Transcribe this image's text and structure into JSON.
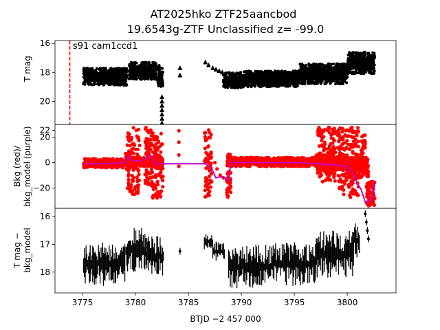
{
  "figure": {
    "title_line1": "AT2025hko  ZTF25aancbod",
    "title_line2": "19.6543g-ZTF Unclassified z= -99.0",
    "xlabel": "BTJD −2 457 000"
  },
  "colors": {
    "black": "#000000",
    "red": "#ff0000",
    "purple": "#bf00bf",
    "marker_line": "#ff0000"
  },
  "chart_data": [
    {
      "type": "scatter",
      "name": "T mag panel",
      "ylabel": "T mag",
      "ylim": [
        21.6,
        15.8
      ],
      "y_inverted": true,
      "xlim": [
        3772.4,
        3804.6
      ],
      "yticks": [
        16,
        18,
        20,
        22
      ],
      "annotation": "s91 cam1ccd1",
      "vline_x": 3773.8,
      "bands": [
        {
          "x0": 3775.1,
          "x1": 3779.2,
          "ymin": 17.7,
          "ymax": 18.9
        },
        {
          "x0": 3779.4,
          "x1": 3782.0,
          "ymin": 17.3,
          "ymax": 18.5
        },
        {
          "x0": 3782.1,
          "x1": 3782.6,
          "ymin": 17.5,
          "ymax": 19.0
        },
        {
          "x0": 3788.3,
          "x1": 3790.2,
          "ymin": 18.0,
          "ymax": 19.1
        },
        {
          "x0": 3790.2,
          "x1": 3795.5,
          "ymin": 17.9,
          "ymax": 19.0
        },
        {
          "x0": 3795.5,
          "x1": 3800.0,
          "ymin": 17.4,
          "ymax": 18.8
        },
        {
          "x0": 3800.0,
          "x1": 3802.6,
          "ymin": 16.6,
          "ymax": 18.1
        }
      ],
      "points": [
        [
          3782.5,
          19.7
        ],
        [
          3782.5,
          20.0
        ],
        [
          3782.5,
          20.3
        ],
        [
          3782.5,
          20.6
        ],
        [
          3782.5,
          20.9
        ],
        [
          3782.5,
          21.2
        ],
        [
          3782.5,
          21.5
        ],
        [
          3784.2,
          17.7
        ],
        [
          3784.2,
          18.2
        ],
        [
          3786.6,
          17.3
        ],
        [
          3786.9,
          17.5
        ],
        [
          3787.3,
          17.7
        ],
        [
          3787.6,
          17.8
        ],
        [
          3787.9,
          17.9
        ],
        [
          3788.2,
          18.0
        ]
      ]
    },
    {
      "type": "scatter",
      "name": "background panel",
      "ylabel_line1": "Bkg (red)/",
      "ylabel_line2": "bkg_model (purple)",
      "ylim": [
        -36,
        30
      ],
      "xlim": [
        3772.4,
        3804.6
      ],
      "yticks": [
        20,
        0,
        -20
      ],
      "bkg_core": [
        [
          3775.1,
          3779.0,
          -4,
          3
        ],
        [
          3779.0,
          3779.5,
          -6,
          8
        ],
        [
          3779.5,
          3782.6,
          -3,
          4
        ],
        [
          3788.8,
          3797.0,
          -3,
          4
        ],
        [
          3797.0,
          3800.0,
          -6,
          6
        ],
        [
          3800.0,
          3802.0,
          -12,
          4
        ]
      ],
      "bkg_spread": [
        [
          3779.2,
          3780.4,
          -25,
          28
        ],
        [
          3780.9,
          3781.6,
          -18,
          28
        ],
        [
          3781.6,
          3782.6,
          -28,
          25
        ],
        [
          3786.5,
          3787.2,
          -27,
          26
        ],
        [
          3788.6,
          3789.0,
          -28,
          7
        ],
        [
          3797.2,
          3798.9,
          -15,
          28
        ],
        [
          3799.1,
          3800.0,
          -25,
          28
        ],
        [
          3800.1,
          3801.1,
          -28,
          28
        ],
        [
          3801.3,
          3801.7,
          -12,
          22
        ],
        [
          3801.8,
          3802.6,
          -34,
          -15
        ]
      ],
      "bkg_points": [
        [
          3784.1,
          25
        ],
        [
          3784.1,
          16
        ],
        [
          3784.1,
          6
        ],
        [
          3784.1,
          -3
        ],
        [
          3787.5,
          0
        ],
        [
          3787.7,
          -5
        ],
        [
          3788.0,
          -10
        ],
        [
          3788.3,
          -12
        ],
        [
          3788.6,
          -14
        ]
      ],
      "model_line": [
        [
          3775.1,
          -1
        ],
        [
          3777.0,
          -1
        ],
        [
          3779.0,
          0
        ],
        [
          3779.3,
          5
        ],
        [
          3779.6,
          2
        ],
        [
          3780.3,
          1
        ],
        [
          3781.0,
          3
        ],
        [
          3781.4,
          6
        ],
        [
          3781.8,
          -1
        ],
        [
          3782.6,
          -1
        ],
        [
          3784.1,
          -1
        ],
        [
          3786.6,
          -1
        ],
        [
          3787.2,
          -5
        ],
        [
          3787.6,
          -12
        ],
        [
          3788.2,
          -11
        ],
        [
          3788.8,
          -14
        ],
        [
          3789.0,
          0
        ],
        [
          3792.0,
          0
        ],
        [
          3795.0,
          0
        ],
        [
          3797.5,
          -1
        ],
        [
          3799.0,
          -2
        ],
        [
          3800.0,
          -3
        ],
        [
          3800.5,
          -8
        ],
        [
          3801.0,
          -17
        ],
        [
          3801.3,
          -21
        ],
        [
          3801.7,
          -31
        ],
        [
          3802.0,
          -31
        ],
        [
          3802.4,
          -27
        ],
        [
          3802.6,
          -15
        ]
      ]
    },
    {
      "type": "scatter",
      "name": "difference panel",
      "ylabel_line1": "T mag −",
      "ylabel_line2": "bkg_model",
      "ylim": [
        18.75,
        15.7
      ],
      "y_inverted": true,
      "xlim": [
        3772.4,
        3804.6
      ],
      "yticks": [
        16,
        17,
        18
      ],
      "bands": [
        {
          "x0": 3775.1,
          "x1": 3779.0,
          "ymin": 16.9,
          "ymax": 18.5
        },
        {
          "x0": 3779.1,
          "x1": 3781.0,
          "ymin": 16.4,
          "ymax": 18.0
        },
        {
          "x0": 3781.0,
          "x1": 3782.7,
          "ymin": 16.7,
          "ymax": 18.2
        },
        {
          "x0": 3786.5,
          "x1": 3787.3,
          "ymin": 16.6,
          "ymax": 17.2
        },
        {
          "x0": 3787.3,
          "x1": 3788.4,
          "ymin": 16.9,
          "ymax": 17.6
        },
        {
          "x0": 3788.8,
          "x1": 3793.0,
          "ymin": 17.0,
          "ymax": 18.6
        },
        {
          "x0": 3793.0,
          "x1": 3797.0,
          "ymin": 16.9,
          "ymax": 18.5
        },
        {
          "x0": 3797.0,
          "x1": 3800.6,
          "ymin": 16.5,
          "ymax": 18.2
        },
        {
          "x0": 3800.6,
          "x1": 3801.2,
          "ymin": 16.2,
          "ymax": 17.5
        }
      ],
      "points": [
        [
          3784.2,
          17.25
        ],
        [
          3801.7,
          15.9
        ],
        [
          3801.8,
          16.2
        ],
        [
          3801.9,
          16.5
        ],
        [
          3802.0,
          16.8
        ]
      ]
    }
  ]
}
